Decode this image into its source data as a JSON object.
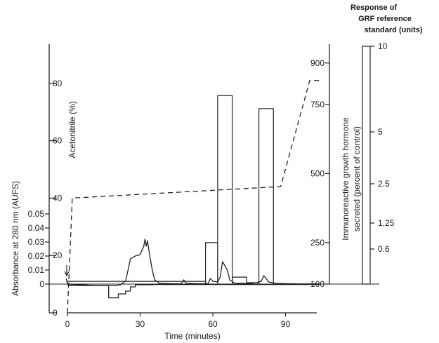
{
  "chart_data": {
    "type": "line",
    "xlabel": "Time (minutes)",
    "x_ticks": [
      0,
      30,
      60,
      90
    ],
    "xlim": [
      0,
      105
    ],
    "axes": {
      "absorbance": {
        "label": "Absorbance at 280 nm (AUFS)",
        "ticks": [
          "0",
          "0.01",
          "0.02",
          "0.03",
          "0.04",
          "0.05"
        ],
        "ylim": [
          -0.01,
          0.08
        ]
      },
      "acetonitrile": {
        "label": "Acetonitrile (%)",
        "ticks": [
          "0",
          "20",
          "40",
          "60",
          "80"
        ],
        "ylim": [
          0,
          90
        ]
      },
      "gh_secretion": {
        "label_lines": [
          "Immunoreactive growth hormone",
          "secreted (percent of control)"
        ],
        "ticks": [
          "100",
          "250",
          "500",
          "750",
          "900"
        ],
        "ylim": [
          100,
          925
        ]
      },
      "grf_standard": {
        "title_lines": [
          "Response of",
          "GRF reference",
          "standard (units)"
        ],
        "ticks": [
          "10",
          "5",
          "2.5",
          "1.25",
          "0.6"
        ]
      }
    },
    "series": [
      {
        "axis": "absorbance",
        "points": [
          [
            -0.5,
            0.004
          ],
          [
            0,
            0
          ],
          [
            3,
            -0.0003
          ],
          [
            10,
            -0.0008
          ],
          [
            20,
            -0.0012
          ],
          [
            22,
            -0.0003
          ],
          [
            24,
            0.0022
          ],
          [
            25,
            0.01
          ],
          [
            26,
            0.018
          ],
          [
            28,
            0.02
          ],
          [
            30,
            0.021
          ],
          [
            31.5,
            0.027
          ],
          [
            32,
            0.032
          ],
          [
            32.5,
            0.027
          ],
          [
            33,
            0.031
          ],
          [
            34,
            0.02
          ],
          [
            35,
            0.01
          ],
          [
            36,
            0.003
          ],
          [
            38,
            0.0005
          ],
          [
            45,
            0.0002
          ],
          [
            47,
            0.0002
          ],
          [
            48,
            0.003
          ],
          [
            49,
            0.0005
          ],
          [
            55,
            0.0002
          ],
          [
            58,
            0.0003
          ],
          [
            59,
            0.004
          ],
          [
            60,
            0.002
          ],
          [
            62,
            0.0015
          ],
          [
            63,
            0.005
          ],
          [
            64,
            0.016
          ],
          [
            65,
            0.013
          ],
          [
            66,
            0.01
          ],
          [
            67,
            0.003
          ],
          [
            69,
            0.0006
          ],
          [
            75,
            0.0004
          ],
          [
            78,
            0.001
          ],
          [
            80,
            0.002
          ],
          [
            81,
            0.006
          ],
          [
            82,
            0.004
          ],
          [
            83,
            0.0015
          ],
          [
            86,
            0.0005
          ],
          [
            90,
            0.0003
          ],
          [
            96,
            0.0001
          ],
          [
            104,
            0.0001
          ]
        ]
      },
      {
        "axis": "absorbance",
        "step": true,
        "points": [
          [
            0,
            -0.001
          ],
          [
            15,
            -0.001
          ],
          [
            17,
            -0.0098
          ],
          [
            19,
            -0.0098
          ],
          [
            21,
            -0.007
          ],
          [
            24,
            -0.005
          ],
          [
            26,
            -0.002
          ],
          [
            28,
            -0.0005
          ],
          [
            35,
            -0.0003
          ],
          [
            104,
            -0.0003
          ]
        ]
      },
      {
        "axis": "acetonitrile",
        "dashed": true,
        "points": [
          [
            0,
            0
          ],
          [
            2,
            40
          ],
          [
            88,
            44
          ],
          [
            100,
            81
          ],
          [
            104,
            81
          ]
        ]
      },
      {
        "axis": "gh_secretion",
        "bars": [
          {
            "x0": 0,
            "x1": 57,
            "value": 110
          },
          {
            "x0": 57,
            "x1": 62,
            "value": 250
          },
          {
            "x0": 62,
            "x1": 68,
            "value": 782
          },
          {
            "x0": 68,
            "x1": 74,
            "value": 125
          },
          {
            "x0": 74,
            "x1": 79,
            "value": 105
          },
          {
            "x0": 79,
            "x1": 85,
            "value": 735
          },
          {
            "x0": 85,
            "x1": 104,
            "value": 100
          }
        ]
      }
    ]
  }
}
